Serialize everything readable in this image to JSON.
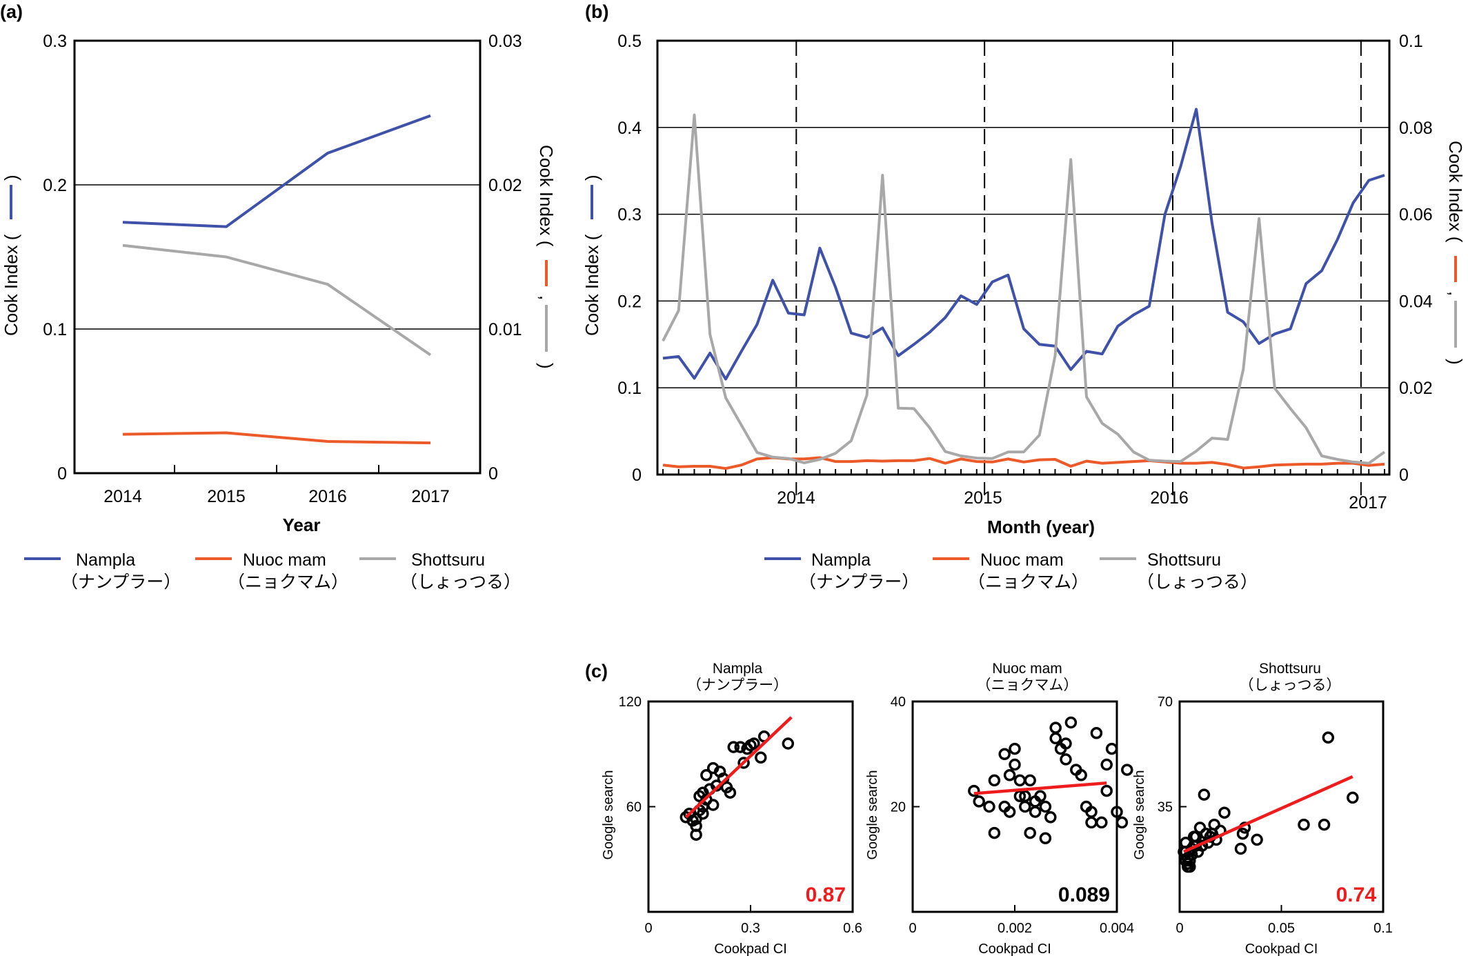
{
  "colors": {
    "nampla": "#3f51a8",
    "nuoc_mam": "#eb5a28",
    "shottsuru": "#a8a8a8",
    "fit": "#ee1c1c"
  },
  "panel_a": {
    "label": "(a)",
    "ylabel": "Cook Index (",
    "ylabel_close": ")",
    "ylabel_right": "Cook Index (",
    "ylabel_right_comma": ",",
    "ylabel_right_close": ")",
    "xlabel": "Year",
    "legend": [
      {
        "name": "Nampla",
        "sub": "（ナンプラー）",
        "color": "#3f51a8"
      },
      {
        "name": "Nuoc mam",
        "sub": "（ニョクマム）",
        "color": "#eb5a28"
      },
      {
        "name": "Shottsuru",
        "sub": "（しょっつる）",
        "color": "#a8a8a8"
      }
    ]
  },
  "panel_b": {
    "label": "(b)",
    "ylabel": "Cook Index (",
    "ylabel_close": ")",
    "ylabel_right": "Cook Index (",
    "ylabel_right_comma": ",",
    "ylabel_right_close": ")",
    "xlabel": "Month (year)",
    "legend": [
      {
        "name": "Nampla",
        "sub": "（ナンプラー）",
        "color": "#3f51a8"
      },
      {
        "name": "Nuoc mam",
        "sub": "（ニョクマム）",
        "color": "#eb5a28"
      },
      {
        "name": "Shottsuru",
        "sub": "（しょっつる）",
        "color": "#a8a8a8"
      }
    ]
  },
  "panel_c": {
    "label": "(c)",
    "plots": [
      {
        "title": "Nampla",
        "sub": "（ナンプラー）",
        "xlabel": "Cookpad CI",
        "ylabel": "Google search",
        "xticks": [
          "0",
          "0.3",
          "0.6"
        ],
        "yticks": [
          "60",
          "120"
        ],
        "r": "0.87",
        "r_color": "#ee1c1c"
      },
      {
        "title": "Nuoc mam",
        "sub": "（ニョクマム）",
        "xlabel": "Cookpad CI",
        "ylabel": "Google search",
        "xticks": [
          "0",
          "0.002",
          "0.004"
        ],
        "yticks": [
          "20",
          "40"
        ],
        "r": "0.089",
        "r_color": "#000000"
      },
      {
        "title": "Shottsuru",
        "sub": "（しょっつる）",
        "xlabel": "Cookpad CI",
        "ylabel": "Google search",
        "xticks": [
          "0",
          "0.05",
          "0.1"
        ],
        "yticks": [
          "35",
          "70"
        ],
        "r": "0.74",
        "r_color": "#ee1c1c"
      }
    ]
  },
  "chart_data": [
    {
      "panel": "a",
      "type": "line",
      "x": [
        2014,
        2015,
        2016,
        2017
      ],
      "xticks": [
        "2014",
        "2015",
        "2016",
        "2017"
      ],
      "xlabel": "Year",
      "ylabel": "Cook Index",
      "ylim": [
        0,
        0.3
      ],
      "yticks": [
        "0",
        "0.1",
        "0.2",
        "0.3"
      ],
      "y2lim": [
        0,
        0.03
      ],
      "y2ticks": [
        "0",
        "0.01",
        "0.02",
        "0.03"
      ],
      "grid": true,
      "series": [
        {
          "name": "Nampla",
          "axis": "left",
          "values": [
            0.174,
            0.171,
            0.222,
            0.248
          ]
        },
        {
          "name": "Nuoc mam",
          "axis": "right",
          "values": [
            0.0027,
            0.0028,
            0.0022,
            0.0021
          ]
        },
        {
          "name": "Shottsuru",
          "axis": "right",
          "values": [
            0.0158,
            0.015,
            0.0131,
            0.0082
          ]
        }
      ]
    },
    {
      "panel": "b",
      "type": "line",
      "x_start": "2013-04",
      "xticks": [
        "2014",
        "2015",
        "2016",
        "2017"
      ],
      "xlabel": "Month (year)",
      "ylabel": "Cook Index",
      "ylim": [
        0,
        0.5
      ],
      "yticks": [
        "0",
        "0.1",
        "0.2",
        "0.3",
        "0.4",
        "0.5"
      ],
      "y2lim": [
        0,
        0.1
      ],
      "y2ticks": [
        "0",
        "0.02",
        "0.04",
        "0.06",
        "0.08",
        "0.1"
      ],
      "grid": true,
      "dashed_lines_at": [
        "2013-12",
        "2014-12",
        "2015-12",
        "2016-12"
      ],
      "series": [
        {
          "name": "Nampla",
          "axis": "left",
          "values": [
            0.134,
            0.136,
            0.111,
            0.14,
            0.11,
            0.142,
            0.173,
            0.224,
            0.186,
            0.184,
            0.261,
            0.216,
            0.163,
            0.158,
            0.169,
            0.137,
            0.15,
            0.164,
            0.181,
            0.206,
            0.196,
            0.222,
            0.23,
            0.168,
            0.15,
            0.148,
            0.121,
            0.142,
            0.139,
            0.171,
            0.184,
            0.194,
            0.3,
            0.355,
            0.421,
            0.29,
            0.187,
            0.176,
            0.151,
            0.162,
            0.168,
            0.22,
            0.235,
            0.271,
            0.313,
            0.339,
            0.345
          ]
        },
        {
          "name": "Nuoc mam",
          "axis": "right",
          "values": [
            0.0022,
            0.0018,
            0.0019,
            0.0019,
            0.0014,
            0.0022,
            0.0036,
            0.0039,
            0.0036,
            0.0036,
            0.0039,
            0.003,
            0.003,
            0.0032,
            0.0031,
            0.0032,
            0.0032,
            0.0037,
            0.0026,
            0.0036,
            0.003,
            0.0029,
            0.0036,
            0.0029,
            0.0034,
            0.0035,
            0.0019,
            0.0031,
            0.0026,
            0.0028,
            0.003,
            0.0032,
            0.0029,
            0.0026,
            0.0026,
            0.0028,
            0.0023,
            0.0015,
            0.0018,
            0.0022,
            0.0023,
            0.0024,
            0.0024,
            0.0026,
            0.0026,
            0.0021,
            0.0024
          ]
        },
        {
          "name": "Shottsuru",
          "axis": "right",
          "values": [
            0.0308,
            0.0378,
            0.0829,
            0.0323,
            0.0177,
            0.0114,
            0.0051,
            0.004,
            0.0037,
            0.0027,
            0.0035,
            0.0049,
            0.0078,
            0.0183,
            0.069,
            0.0153,
            0.0152,
            0.0108,
            0.0053,
            0.0043,
            0.0038,
            0.0037,
            0.0052,
            0.0052,
            0.0091,
            0.0274,
            0.0726,
            0.0179,
            0.0118,
            0.0093,
            0.0052,
            0.0033,
            0.0031,
            0.003,
            0.0054,
            0.0084,
            0.0081,
            0.0243,
            0.059,
            0.0199,
            0.0152,
            0.0108,
            0.0043,
            0.0035,
            0.0029,
            0.0026,
            0.0052
          ]
        }
      ]
    },
    {
      "panel": "c1",
      "type": "scatter",
      "title": "Nampla",
      "xlabel": "Cookpad CI",
      "ylabel": "Google search",
      "xlim": [
        0,
        0.6
      ],
      "ylim": [
        0,
        120
      ],
      "r": 0.87,
      "fit": {
        "x": [
          0.11,
          0.42
        ],
        "y": [
          54,
          111
        ]
      },
      "points": [
        [
          0.11,
          54
        ],
        [
          0.12,
          56
        ],
        [
          0.13,
          52
        ],
        [
          0.14,
          49
        ],
        [
          0.14,
          44
        ],
        [
          0.15,
          66
        ],
        [
          0.15,
          58
        ],
        [
          0.16,
          60
        ],
        [
          0.17,
          64
        ],
        [
          0.16,
          68
        ],
        [
          0.18,
          70
        ],
        [
          0.17,
          78
        ],
        [
          0.2,
          72
        ],
        [
          0.19,
          82
        ],
        [
          0.21,
          80
        ],
        [
          0.22,
          76
        ],
        [
          0.23,
          71
        ],
        [
          0.24,
          68
        ],
        [
          0.25,
          94
        ],
        [
          0.27,
          94
        ],
        [
          0.29,
          93
        ],
        [
          0.3,
          95
        ],
        [
          0.31,
          96
        ],
        [
          0.28,
          85
        ],
        [
          0.33,
          88
        ],
        [
          0.34,
          100
        ],
        [
          0.41,
          96
        ],
        [
          0.16,
          56
        ],
        [
          0.19,
          61
        ],
        [
          0.14,
          53
        ]
      ]
    },
    {
      "panel": "c2",
      "type": "scatter",
      "title": "Nuoc mam",
      "xlabel": "Cookpad CI",
      "ylabel": "Google search",
      "xlim": [
        0,
        0.004
      ],
      "ylim": [
        0,
        40
      ],
      "r": 0.089,
      "fit": {
        "x": [
          0.0012,
          0.0038
        ],
        "y": [
          22.5,
          24.5
        ]
      },
      "points": [
        [
          0.0012,
          23
        ],
        [
          0.0013,
          21
        ],
        [
          0.0015,
          20
        ],
        [
          0.0016,
          25
        ],
        [
          0.0018,
          20
        ],
        [
          0.0018,
          30
        ],
        [
          0.0019,
          19
        ],
        [
          0.0019,
          26
        ],
        [
          0.002,
          28
        ],
        [
          0.002,
          31
        ],
        [
          0.0021,
          25
        ],
        [
          0.0021,
          22
        ],
        [
          0.0022,
          22
        ],
        [
          0.0022,
          20
        ],
        [
          0.0023,
          25
        ],
        [
          0.0023,
          15
        ],
        [
          0.0024,
          21
        ],
        [
          0.0024,
          19
        ],
        [
          0.0025,
          22
        ],
        [
          0.0026,
          20
        ],
        [
          0.0026,
          14
        ],
        [
          0.0027,
          18
        ],
        [
          0.0028,
          33
        ],
        [
          0.0028,
          35
        ],
        [
          0.0029,
          31
        ],
        [
          0.003,
          29
        ],
        [
          0.003,
          32
        ],
        [
          0.0031,
          36
        ],
        [
          0.0032,
          27
        ],
        [
          0.0033,
          26
        ],
        [
          0.0034,
          20
        ],
        [
          0.0035,
          19
        ],
        [
          0.0035,
          17
        ],
        [
          0.0036,
          34
        ],
        [
          0.0037,
          17
        ],
        [
          0.0038,
          23
        ],
        [
          0.0038,
          28
        ],
        [
          0.0039,
          31
        ],
        [
          0.004,
          19
        ],
        [
          0.0041,
          17
        ],
        [
          0.0042,
          27
        ],
        [
          0.0016,
          15
        ]
      ]
    },
    {
      "panel": "c3",
      "type": "scatter",
      "title": "Shottsuru",
      "xlabel": "Cookpad CI",
      "ylabel": "Google search",
      "xlim": [
        0,
        0.1
      ],
      "ylim": [
        0,
        70
      ],
      "r": 0.74,
      "fit": {
        "x": [
          0.002,
          0.085
        ],
        "y": [
          20,
          45
        ]
      },
      "points": [
        [
          0.002,
          20
        ],
        [
          0.003,
          23
        ],
        [
          0.003,
          17
        ],
        [
          0.004,
          18
        ],
        [
          0.004,
          15
        ],
        [
          0.005,
          17
        ],
        [
          0.005,
          15
        ],
        [
          0.006,
          21
        ],
        [
          0.007,
          22
        ],
        [
          0.007,
          25
        ],
        [
          0.008,
          25
        ],
        [
          0.009,
          20
        ],
        [
          0.01,
          28
        ],
        [
          0.011,
          22
        ],
        [
          0.012,
          39
        ],
        [
          0.013,
          26
        ],
        [
          0.014,
          23
        ],
        [
          0.015,
          25
        ],
        [
          0.016,
          26
        ],
        [
          0.017,
          29
        ],
        [
          0.018,
          24
        ],
        [
          0.02,
          27
        ],
        [
          0.022,
          33
        ],
        [
          0.03,
          21
        ],
        [
          0.031,
          26
        ],
        [
          0.032,
          28
        ],
        [
          0.038,
          24
        ],
        [
          0.061,
          29
        ],
        [
          0.071,
          29
        ],
        [
          0.073,
          58
        ],
        [
          0.085,
          38
        ],
        [
          0.003,
          20
        ],
        [
          0.004,
          16
        ],
        [
          0.006,
          19
        ],
        [
          0.008,
          22
        ]
      ]
    }
  ]
}
